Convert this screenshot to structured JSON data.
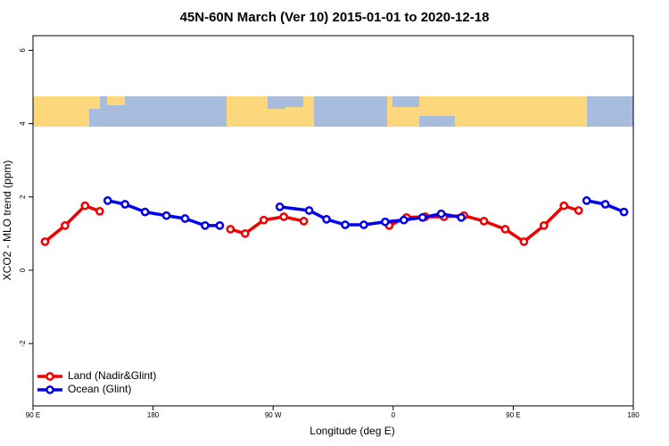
{
  "chart_data": {
    "type": "line",
    "title": "45N-60N March (Ver 10)   2015-01-01 to 2020-12-18",
    "xlabel": "Longitude (deg E)",
    "ylabel": "XCO2 - MLO trend (ppm)",
    "xlim": [
      90,
      540
    ],
    "ylim": [
      -3.7,
      6.4
    ],
    "xticks": [
      {
        "value": 90,
        "label": "90 E"
      },
      180,
      {
        "value": 270,
        "label": "90 W"
      },
      {
        "value": 360,
        "label": "0"
      },
      {
        "value": 450,
        "label": "90 E"
      },
      {
        "value": 540,
        "label": "180"
      }
    ],
    "yticks": [
      -2,
      0,
      2,
      4,
      6
    ],
    "legend": "bottom-left",
    "series": [
      {
        "name": "Land (Nadir&Glint)",
        "color": "#ee0000",
        "x": [
          99,
          114,
          129,
          140,
          200,
          238,
          249,
          263,
          278,
          293,
          360,
          357,
          370,
          384,
          398,
          413,
          428,
          444,
          458,
          473,
          488,
          499
        ],
        "values": [
          0.78,
          1.22,
          1.76,
          1.61,
          null,
          1.12,
          1.0,
          1.37,
          1.46,
          1.34,
          null,
          1.22,
          1.44,
          1.46,
          1.46,
          1.49,
          1.34,
          1.12,
          0.78,
          1.22,
          1.76,
          1.63
        ]
      },
      {
        "name": "Ocean (Glint)",
        "color": "#0000ee",
        "x": [
          146,
          159,
          174,
          190,
          204,
          219,
          230,
          270,
          275,
          297,
          310,
          324,
          338,
          354,
          368,
          382,
          396,
          411,
          450,
          505,
          519,
          533
        ],
        "values": [
          1.9,
          1.8,
          1.59,
          1.49,
          1.41,
          1.22,
          1.22,
          null,
          1.73,
          1.63,
          1.39,
          1.24,
          1.24,
          1.32,
          1.37,
          1.44,
          1.54,
          1.44,
          null,
          1.9,
          1.8,
          1.59
        ]
      }
    ]
  }
}
